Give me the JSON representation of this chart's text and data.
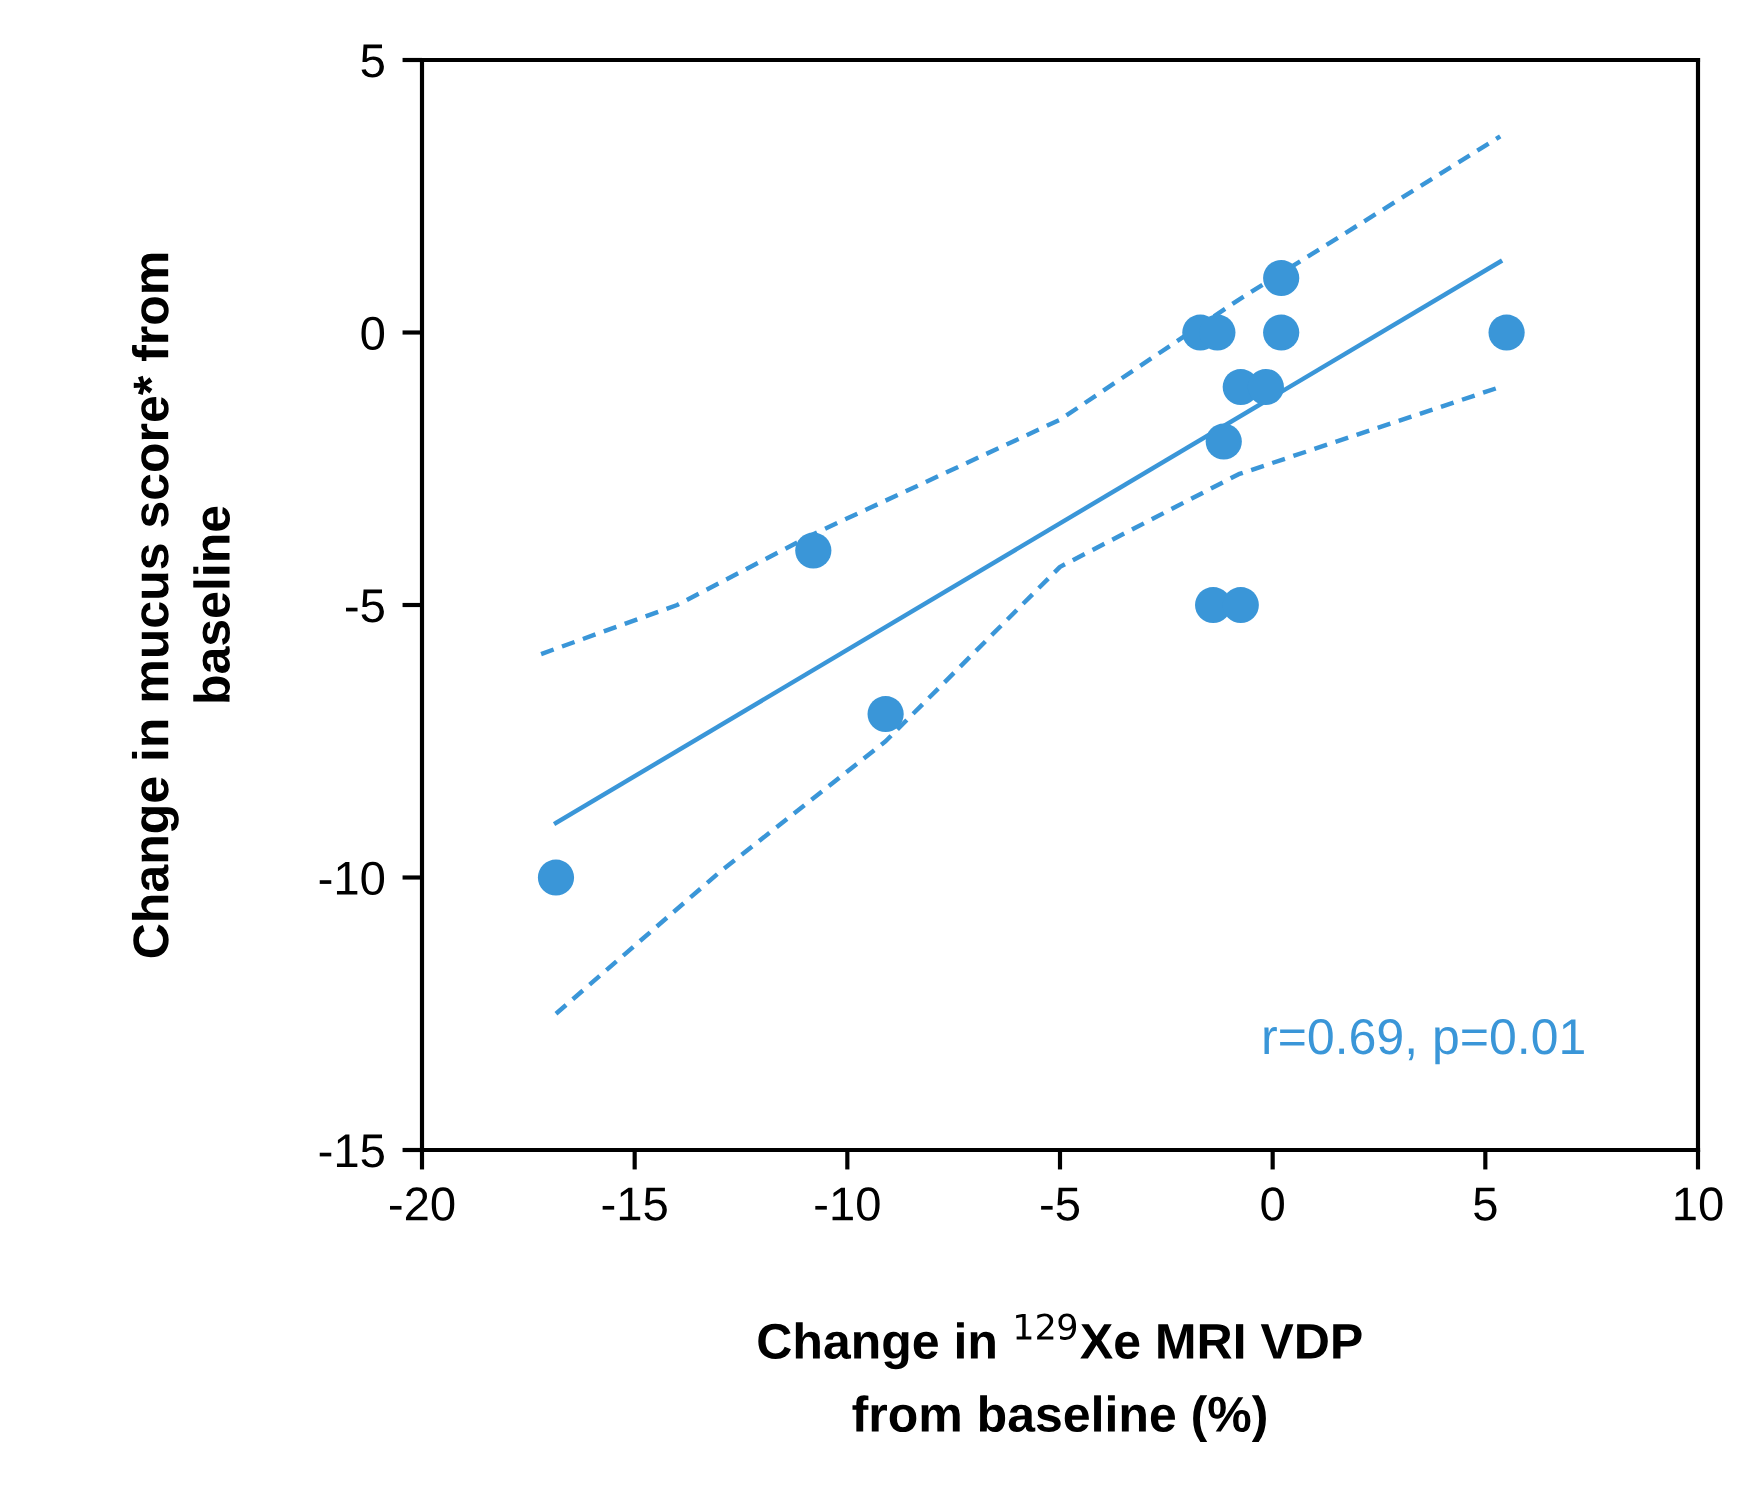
{
  "chart_data": {
    "type": "scatter",
    "xlabel": "Change in $^{129}$Xe MRI VDP\nfrom baseline (%)",
    "ylabel": "Change in mucus score* from\nbaseline",
    "xlim": [
      -20,
      10
    ],
    "ylim": [
      -15,
      5
    ],
    "xticks": [
      -20,
      -15,
      -10,
      -5,
      0,
      5,
      10
    ],
    "yticks": [
      -15,
      -10,
      -5,
      0,
      5
    ],
    "grid": false,
    "legend": false,
    "series": [
      {
        "marker": "circle",
        "color": "#3a96d8",
        "x": [
          -16.85,
          -10.8,
          -9.1,
          -1.7,
          -1.3,
          -1.15,
          -1.4,
          -0.75,
          -0.75,
          -0.16,
          0.2,
          0.2,
          5.5
        ],
        "values": [
          -10,
          -4,
          -7,
          0,
          0,
          -2,
          -5,
          -5,
          -1,
          -1,
          1,
          0,
          0
        ]
      },
      {
        "type": "line",
        "color": "#3a96d8",
        "line_style": "solid",
        "x": [
          -16.85,
          5.35
        ],
        "values": [
          -9.0,
          1.3
        ]
      },
      {
        "type": "line",
        "color": "#3a96d8",
        "line_style": "dashed",
        "x": [
          -17.2,
          -14,
          -10.8,
          -5,
          -0.8,
          5.35
        ],
        "values": [
          -5.9,
          -5.0,
          -3.7,
          -1.6,
          0.6,
          3.6
        ]
      },
      {
        "type": "line",
        "color": "#3a96d8",
        "line_style": "dashed",
        "x": [
          -16.85,
          -13,
          -9.1,
          -5,
          -0.8,
          5.35
        ],
        "values": [
          -12.5,
          -9.9,
          -7.5,
          -4.3,
          -2.6,
          -1.0
        ]
      }
    ],
    "annotations": [
      "r=0.69, p=0.01"
    ]
  }
}
